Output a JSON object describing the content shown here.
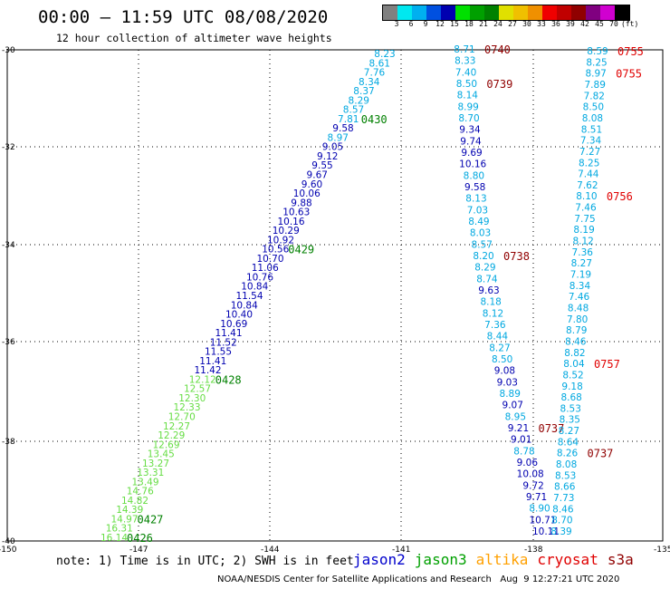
{
  "title": "00:00 – 11:59 UTC 08/08/2020",
  "subtitle": "12 hour collection of altimeter wave heights",
  "colorbar": {
    "labels": [
      "3",
      "6",
      "9",
      "12",
      "15",
      "18",
      "21",
      "24",
      "27",
      "30",
      "33",
      "36",
      "39",
      "42",
      "45",
      "70",
      "(ft)"
    ],
    "colors": [
      "#808080",
      "#00e8f0",
      "#00b0f0",
      "#0050e0",
      "#0000b0",
      "#00e000",
      "#00a000",
      "#008000",
      "#e0e000",
      "#f0c000",
      "#f09000",
      "#f00000",
      "#c00000",
      "#900000",
      "#800080",
      "#d000d0",
      "#000000"
    ]
  },
  "note": "note: 1) Time is in UTC; 2) SWH is in feet",
  "credit": "NOAA/NESDIS Center for Satellite Applications and Research   Aug  9 12:27:21 UTC 2020",
  "legend": [
    {
      "label": "jason2",
      "color": "#0000cc"
    },
    {
      "label": "jason3",
      "color": "#00a000"
    },
    {
      "label": "altika",
      "color": "#ffa000"
    },
    {
      "label": "cryosat",
      "color": "#e00000"
    },
    {
      "label": "s3a",
      "color": "#900000"
    }
  ],
  "map": {
    "lon_range": [
      -150,
      -135
    ],
    "lat_range": [
      -40,
      -30
    ],
    "x_ticks": [
      "-150",
      "-147",
      "-144",
      "-141",
      "-138",
      "-135"
    ],
    "y_ticks": [
      "-30",
      "-32",
      "-34",
      "-36",
      "-38",
      "-40"
    ],
    "grid": "dotted"
  },
  "tracks": [
    {
      "id": "track-left",
      "points": [
        {
          "v": "8.23",
          "c": "#00a8e0"
        },
        {
          "v": "8.61",
          "c": "#00a8e0"
        },
        {
          "v": "7.76",
          "c": "#00a8e0"
        },
        {
          "v": "8.34",
          "c": "#00a8e0"
        },
        {
          "v": "8.37",
          "c": "#00a8e0"
        },
        {
          "v": "8.29",
          "c": "#00a8e0"
        },
        {
          "v": "8.57",
          "c": "#00a8e0"
        },
        {
          "v": "7.81",
          "c": "#00a8e0"
        },
        {
          "v": "9.58",
          "c": "#0000b0"
        },
        {
          "v": "8.97",
          "c": "#00a8e0"
        },
        {
          "v": "9.05",
          "c": "#0000b0"
        },
        {
          "v": "9.12",
          "c": "#0000b0"
        },
        {
          "v": "9.55",
          "c": "#0000b0"
        },
        {
          "v": "9.67",
          "c": "#0000b0"
        },
        {
          "v": "9.60",
          "c": "#0000b0"
        },
        {
          "v": "10.06",
          "c": "#0000b0"
        },
        {
          "v": "9.88",
          "c": "#0000b0"
        },
        {
          "v": "10.63",
          "c": "#0000b0"
        },
        {
          "v": "10.16",
          "c": "#0000b0"
        },
        {
          "v": "10.29",
          "c": "#0000b0"
        },
        {
          "v": "10.92",
          "c": "#0000b0"
        },
        {
          "v": "10.56",
          "c": "#0000b0"
        },
        {
          "v": "10.70",
          "c": "#0000b0"
        },
        {
          "v": "11.06",
          "c": "#0000b0"
        },
        {
          "v": "10.76",
          "c": "#0000b0"
        },
        {
          "v": "10.84",
          "c": "#0000b0"
        },
        {
          "v": "11.54",
          "c": "#0000b0"
        },
        {
          "v": "10.84",
          "c": "#0000b0"
        },
        {
          "v": "10.40",
          "c": "#0000b0"
        },
        {
          "v": "10.69",
          "c": "#0000b0"
        },
        {
          "v": "11.41",
          "c": "#0000b0"
        },
        {
          "v": "11.52",
          "c": "#0000b0"
        },
        {
          "v": "11.55",
          "c": "#0000b0"
        },
        {
          "v": "11.41",
          "c": "#0000b0"
        },
        {
          "v": "11.42",
          "c": "#0000b0"
        },
        {
          "v": "12.12",
          "c": "#66dd44"
        },
        {
          "v": "12.57",
          "c": "#66dd44"
        },
        {
          "v": "12.30",
          "c": "#66dd44"
        },
        {
          "v": "12.33",
          "c": "#66dd44"
        },
        {
          "v": "12.70",
          "c": "#66dd44"
        },
        {
          "v": "12.27",
          "c": "#66dd44"
        },
        {
          "v": "12.29",
          "c": "#66dd44"
        },
        {
          "v": "12.69",
          "c": "#66dd44"
        },
        {
          "v": "13.45",
          "c": "#66dd44"
        },
        {
          "v": "13.27",
          "c": "#66dd44"
        },
        {
          "v": "13.31",
          "c": "#66dd44"
        },
        {
          "v": "13.49",
          "c": "#66dd44"
        },
        {
          "v": "14.76",
          "c": "#66dd44"
        },
        {
          "v": "14.82",
          "c": "#66dd44"
        },
        {
          "v": "14.39",
          "c": "#66dd44"
        },
        {
          "v": "14.97",
          "c": "#66dd44"
        },
        {
          "v": "16.31",
          "c": "#66dd44"
        },
        {
          "v": "16.14",
          "c": "#66dd44"
        }
      ],
      "times": [
        {
          "t": "0430",
          "c": "#008000",
          "idx": 7
        },
        {
          "t": "0429",
          "c": "#008000",
          "idx": 21
        },
        {
          "t": "0428",
          "c": "#008000",
          "idx": 35
        },
        {
          "t": "0427",
          "c": "#008000",
          "idx": 50
        },
        {
          "t": "0426",
          "c": "#008000",
          "idx": 52
        }
      ]
    },
    {
      "id": "track-middle",
      "points": [
        {
          "v": "8.71",
          "c": "#00a8e0"
        },
        {
          "v": "8.33",
          "c": "#00a8e0"
        },
        {
          "v": "7.40",
          "c": "#00a8e0"
        },
        {
          "v": "8.50",
          "c": "#00a8e0"
        },
        {
          "v": "8.14",
          "c": "#00a8e0"
        },
        {
          "v": "8.99",
          "c": "#00a8e0"
        },
        {
          "v": "8.70",
          "c": "#00a8e0"
        },
        {
          "v": "9.34",
          "c": "#0000b0"
        },
        {
          "v": "9.74",
          "c": "#0000b0"
        },
        {
          "v": "9.69",
          "c": "#0000b0"
        },
        {
          "v": "10.16",
          "c": "#0000b0"
        },
        {
          "v": "8.80",
          "c": "#00a8e0"
        },
        {
          "v": "9.58",
          "c": "#0000b0"
        },
        {
          "v": "8.13",
          "c": "#00a8e0"
        },
        {
          "v": "7.03",
          "c": "#00a8e0"
        },
        {
          "v": "8.49",
          "c": "#00a8e0"
        },
        {
          "v": "8.03",
          "c": "#00a8e0"
        },
        {
          "v": "8.57",
          "c": "#00a8e0"
        },
        {
          "v": "8.20",
          "c": "#00a8e0"
        },
        {
          "v": "8.29",
          "c": "#00a8e0"
        },
        {
          "v": "8.74",
          "c": "#00a8e0"
        },
        {
          "v": "9.63",
          "c": "#0000b0"
        },
        {
          "v": "8.18",
          "c": "#00a8e0"
        },
        {
          "v": "8.12",
          "c": "#00a8e0"
        },
        {
          "v": "7.36",
          "c": "#00a8e0"
        },
        {
          "v": "8.44",
          "c": "#00a8e0"
        },
        {
          "v": "8.27",
          "c": "#00a8e0"
        },
        {
          "v": "8.50",
          "c": "#00a8e0"
        },
        {
          "v": "9.08",
          "c": "#0000b0"
        },
        {
          "v": "9.03",
          "c": "#0000b0"
        },
        {
          "v": "8.89",
          "c": "#00a8e0"
        },
        {
          "v": "9.07",
          "c": "#0000b0"
        },
        {
          "v": "8.95",
          "c": "#00a8e0"
        },
        {
          "v": "9.21",
          "c": "#0000b0"
        },
        {
          "v": "9.01",
          "c": "#0000b0"
        },
        {
          "v": "8.78",
          "c": "#00a8e0"
        },
        {
          "v": "9.06",
          "c": "#0000b0"
        },
        {
          "v": "10.08",
          "c": "#0000b0"
        },
        {
          "v": "9.72",
          "c": "#0000b0"
        },
        {
          "v": "9.71",
          "c": "#0000b0"
        },
        {
          "v": "8.90",
          "c": "#00a8e0"
        },
        {
          "v": "10.71",
          "c": "#0000b0"
        },
        {
          "v": "10.11",
          "c": "#0000b0"
        }
      ],
      "times": [
        {
          "t": "0740",
          "c": "#900000",
          "idx": 0
        },
        {
          "t": "0739",
          "c": "#900000",
          "idx": 3
        },
        {
          "t": "0738",
          "c": "#900000",
          "idx": 18
        },
        {
          "t": "0737",
          "c": "#900000",
          "idx": 33
        }
      ]
    },
    {
      "id": "track-right",
      "points": [
        {
          "v": "8.59",
          "c": "#00a8e0"
        },
        {
          "v": "8.25",
          "c": "#00a8e0"
        },
        {
          "v": "8.97",
          "c": "#00a8e0"
        },
        {
          "v": "7.89",
          "c": "#00a8e0"
        },
        {
          "v": "7.82",
          "c": "#00a8e0"
        },
        {
          "v": "8.50",
          "c": "#00a8e0"
        },
        {
          "v": "8.08",
          "c": "#00a8e0"
        },
        {
          "v": "8.51",
          "c": "#00a8e0"
        },
        {
          "v": "7.34",
          "c": "#00a8e0"
        },
        {
          "v": "7.27",
          "c": "#00a8e0"
        },
        {
          "v": "8.25",
          "c": "#00a8e0"
        },
        {
          "v": "7.44",
          "c": "#00a8e0"
        },
        {
          "v": "7.62",
          "c": "#00a8e0"
        },
        {
          "v": "8.10",
          "c": "#00a8e0"
        },
        {
          "v": "7.46",
          "c": "#00a8e0"
        },
        {
          "v": "7.75",
          "c": "#00a8e0"
        },
        {
          "v": "8.19",
          "c": "#00a8e0"
        },
        {
          "v": "8.12",
          "c": "#00a8e0"
        },
        {
          "v": "7.36",
          "c": "#00a8e0"
        },
        {
          "v": "8.27",
          "c": "#00a8e0"
        },
        {
          "v": "7.19",
          "c": "#00a8e0"
        },
        {
          "v": "8.34",
          "c": "#00a8e0"
        },
        {
          "v": "7.46",
          "c": "#00a8e0"
        },
        {
          "v": "8.48",
          "c": "#00a8e0"
        },
        {
          "v": "7.80",
          "c": "#00a8e0"
        },
        {
          "v": "8.79",
          "c": "#00a8e0"
        },
        {
          "v": "8.46",
          "c": "#00a8e0"
        },
        {
          "v": "8.82",
          "c": "#00a8e0"
        },
        {
          "v": "8.04",
          "c": "#00a8e0"
        },
        {
          "v": "8.52",
          "c": "#00a8e0"
        },
        {
          "v": "9.18",
          "c": "#00a8e0"
        },
        {
          "v": "8.68",
          "c": "#00a8e0"
        },
        {
          "v": "8.53",
          "c": "#00a8e0"
        },
        {
          "v": "8.35",
          "c": "#00a8e0"
        },
        {
          "v": "8.27",
          "c": "#00a8e0"
        },
        {
          "v": "8.64",
          "c": "#00a8e0"
        },
        {
          "v": "8.26",
          "c": "#00a8e0"
        },
        {
          "v": "8.08",
          "c": "#00a8e0"
        },
        {
          "v": "8.53",
          "c": "#00a8e0"
        },
        {
          "v": "8.66",
          "c": "#00a8e0"
        },
        {
          "v": "7.73",
          "c": "#00a8e0"
        },
        {
          "v": "8.46",
          "c": "#00a8e0"
        },
        {
          "v": "8.70",
          "c": "#00a8e0"
        },
        {
          "v": "8.39",
          "c": "#00a8e0"
        }
      ],
      "times": [
        {
          "t": "0755",
          "c": "#e00000",
          "idx": 0
        },
        {
          "t": "0755",
          "c": "#e00000",
          "idx": 2
        },
        {
          "t": "0756",
          "c": "#e00000",
          "idx": 13
        },
        {
          "t": "0757",
          "c": "#e00000",
          "idx": 28
        },
        {
          "t": "0737",
          "c": "#900000",
          "idx": 36
        }
      ]
    }
  ]
}
